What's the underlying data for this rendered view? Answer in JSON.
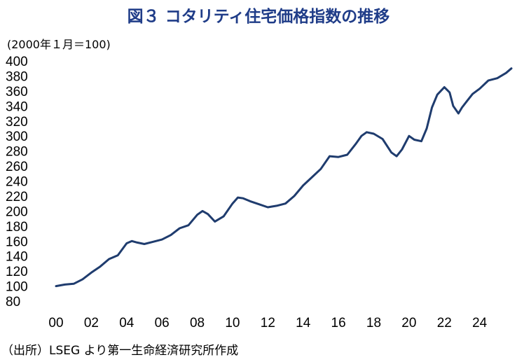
{
  "title": "図３ コタリティ住宅価格指数の推移",
  "unit_label": "(2000年１月＝100)",
  "source": "（出所）LSEG より第一生命経済研究所作成",
  "colors": {
    "title": "#1f3c88",
    "line": "#1f3c6e"
  },
  "chart_data": {
    "type": "line",
    "title": "図３ コタリティ住宅価格指数の推移",
    "ylabel": "(2000年１月＝100)",
    "ylim": [
      80,
      400
    ],
    "yticks": [
      80,
      100,
      120,
      140,
      160,
      180,
      200,
      220,
      240,
      260,
      280,
      300,
      320,
      340,
      360,
      380,
      400
    ],
    "xlim": [
      2000.0,
      2025.8
    ],
    "xticks": [
      "00",
      "02",
      "04",
      "06",
      "08",
      "10",
      "12",
      "14",
      "16",
      "18",
      "20",
      "22",
      "24"
    ],
    "grid": false,
    "series": [
      {
        "name": "",
        "x": [
          2000.0,
          2000.5,
          2001.0,
          2001.5,
          2002.0,
          2002.5,
          2003.0,
          2003.5,
          2004.0,
          2004.3,
          2004.6,
          2005.0,
          2005.5,
          2006.0,
          2006.5,
          2007.0,
          2007.5,
          2008.0,
          2008.3,
          2008.6,
          2009.0,
          2009.5,
          2010.0,
          2010.3,
          2010.6,
          2011.0,
          2011.5,
          2012.0,
          2012.5,
          2013.0,
          2013.5,
          2014.0,
          2014.5,
          2015.0,
          2015.5,
          2016.0,
          2016.5,
          2017.0,
          2017.3,
          2017.6,
          2018.0,
          2018.5,
          2019.0,
          2019.3,
          2019.6,
          2020.0,
          2020.3,
          2020.7,
          2021.0,
          2021.3,
          2021.6,
          2022.0,
          2022.3,
          2022.5,
          2022.8,
          2023.0,
          2023.3,
          2023.6,
          2024.0,
          2024.5,
          2025.0,
          2025.5,
          2025.8
        ],
        "values": [
          100,
          102,
          103,
          109,
          118,
          126,
          136,
          141,
          157,
          160,
          158,
          156,
          159,
          162,
          168,
          177,
          181,
          195,
          200,
          196,
          186,
          193,
          210,
          218,
          217,
          213,
          209,
          205,
          207,
          210,
          220,
          234,
          245,
          256,
          273,
          272,
          275,
          290,
          300,
          305,
          303,
          296,
          278,
          273,
          282,
          300,
          295,
          293,
          310,
          338,
          355,
          365,
          358,
          340,
          330,
          338,
          347,
          356,
          363,
          374,
          377,
          384,
          390
        ]
      }
    ]
  }
}
